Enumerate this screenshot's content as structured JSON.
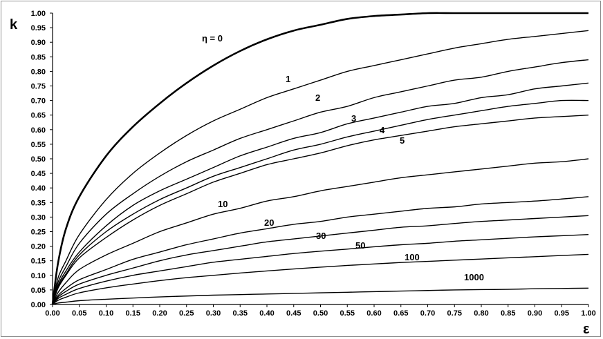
{
  "chart_data": {
    "type": "line",
    "title": "",
    "xlabel": "ε",
    "ylabel": "k",
    "xlim": [
      0,
      1
    ],
    "ylim": [
      0,
      1
    ],
    "grid": false,
    "legend": "none",
    "x_ticks": [
      "0.00",
      "0.05",
      "0.10",
      "0.15",
      "0.20",
      "0.25",
      "0.30",
      "0.35",
      "0.40",
      "0.45",
      "0.50",
      "0.55",
      "0.60",
      "0.65",
      "0.70",
      "0.75",
      "0.80",
      "0.85",
      "0.90",
      "0.95",
      "1.00"
    ],
    "y_ticks": [
      "0.00",
      "0.05",
      "0.10",
      "0.15",
      "0.20",
      "0.25",
      "0.30",
      "0.35",
      "0.40",
      "0.45",
      "0.50",
      "0.55",
      "0.60",
      "0.65",
      "0.70",
      "0.75",
      "0.80",
      "0.85",
      "0.90",
      "0.95",
      "1.00"
    ],
    "x": [
      0.0,
      0.01,
      0.025,
      0.05,
      0.1,
      0.15,
      0.2,
      0.25,
      0.3,
      0.35,
      0.4,
      0.45,
      0.5,
      0.55,
      0.6,
      0.65,
      0.7,
      0.75,
      0.8,
      0.85,
      0.9,
      0.95,
      1.0
    ],
    "series": [
      {
        "name": "η = 0",
        "label": "η = 0",
        "bold": true,
        "values": [
          0.0,
          0.14,
          0.26,
          0.37,
          0.51,
          0.61,
          0.69,
          0.76,
          0.82,
          0.87,
          0.91,
          0.94,
          0.96,
          0.98,
          0.99,
          0.995,
          1.0,
          1.0,
          1.0,
          1.0,
          1.0,
          1.0,
          1.0
        ]
      },
      {
        "name": "1",
        "label": "1",
        "values": [
          0.0,
          0.09,
          0.15,
          0.24,
          0.36,
          0.45,
          0.52,
          0.58,
          0.63,
          0.67,
          0.71,
          0.74,
          0.77,
          0.8,
          0.82,
          0.84,
          0.86,
          0.88,
          0.895,
          0.91,
          0.92,
          0.93,
          0.94
        ]
      },
      {
        "name": "2",
        "label": "2",
        "values": [
          0.0,
          0.075,
          0.13,
          0.21,
          0.31,
          0.38,
          0.44,
          0.49,
          0.53,
          0.57,
          0.6,
          0.63,
          0.66,
          0.68,
          0.71,
          0.73,
          0.75,
          0.77,
          0.78,
          0.8,
          0.815,
          0.83,
          0.84
        ]
      },
      {
        "name": "3",
        "label": "3",
        "values": [
          0.0,
          0.065,
          0.115,
          0.18,
          0.27,
          0.34,
          0.39,
          0.43,
          0.47,
          0.51,
          0.54,
          0.57,
          0.59,
          0.62,
          0.64,
          0.66,
          0.68,
          0.69,
          0.71,
          0.72,
          0.74,
          0.75,
          0.76
        ]
      },
      {
        "name": "4",
        "label": "4",
        "values": [
          0.0,
          0.06,
          0.105,
          0.17,
          0.25,
          0.31,
          0.36,
          0.4,
          0.44,
          0.47,
          0.5,
          0.53,
          0.55,
          0.575,
          0.595,
          0.615,
          0.635,
          0.65,
          0.665,
          0.68,
          0.69,
          0.7,
          0.7
        ]
      },
      {
        "name": "5",
        "label": "5",
        "values": [
          0.0,
          0.055,
          0.1,
          0.16,
          0.23,
          0.29,
          0.34,
          0.38,
          0.42,
          0.45,
          0.48,
          0.5,
          0.52,
          0.545,
          0.565,
          0.58,
          0.595,
          0.61,
          0.62,
          0.63,
          0.64,
          0.645,
          0.65
        ]
      },
      {
        "name": "10",
        "label": "10",
        "values": [
          0.0,
          0.04,
          0.075,
          0.12,
          0.17,
          0.21,
          0.25,
          0.28,
          0.31,
          0.33,
          0.355,
          0.37,
          0.39,
          0.405,
          0.42,
          0.435,
          0.445,
          0.455,
          0.465,
          0.475,
          0.485,
          0.49,
          0.5
        ]
      },
      {
        "name": "20",
        "label": "20",
        "values": [
          0.0,
          0.03,
          0.055,
          0.085,
          0.12,
          0.155,
          0.18,
          0.205,
          0.225,
          0.245,
          0.26,
          0.275,
          0.285,
          0.3,
          0.31,
          0.32,
          0.33,
          0.335,
          0.345,
          0.35,
          0.355,
          0.362,
          0.37
        ]
      },
      {
        "name": "30",
        "label": "30",
        "values": [
          0.0,
          0.025,
          0.045,
          0.07,
          0.1,
          0.125,
          0.15,
          0.17,
          0.185,
          0.2,
          0.215,
          0.225,
          0.235,
          0.245,
          0.255,
          0.265,
          0.27,
          0.278,
          0.285,
          0.29,
          0.295,
          0.3,
          0.305
        ]
      },
      {
        "name": "50",
        "label": "50",
        "values": [
          0.0,
          0.02,
          0.035,
          0.055,
          0.08,
          0.1,
          0.115,
          0.13,
          0.145,
          0.155,
          0.165,
          0.175,
          0.183,
          0.19,
          0.198,
          0.205,
          0.21,
          0.217,
          0.222,
          0.227,
          0.232,
          0.236,
          0.24
        ]
      },
      {
        "name": "100",
        "label": "100",
        "values": [
          0.0,
          0.014,
          0.025,
          0.04,
          0.057,
          0.07,
          0.082,
          0.092,
          0.1,
          0.108,
          0.115,
          0.122,
          0.128,
          0.134,
          0.139,
          0.144,
          0.148,
          0.152,
          0.156,
          0.16,
          0.164,
          0.168,
          0.172
        ]
      },
      {
        "name": "1000",
        "label": "1000",
        "values": [
          0.0,
          0.005,
          0.008,
          0.013,
          0.018,
          0.022,
          0.026,
          0.029,
          0.032,
          0.034,
          0.036,
          0.038,
          0.04,
          0.042,
          0.044,
          0.046,
          0.048,
          0.05,
          0.051,
          0.052,
          0.054,
          0.055,
          0.056
        ]
      }
    ]
  }
}
